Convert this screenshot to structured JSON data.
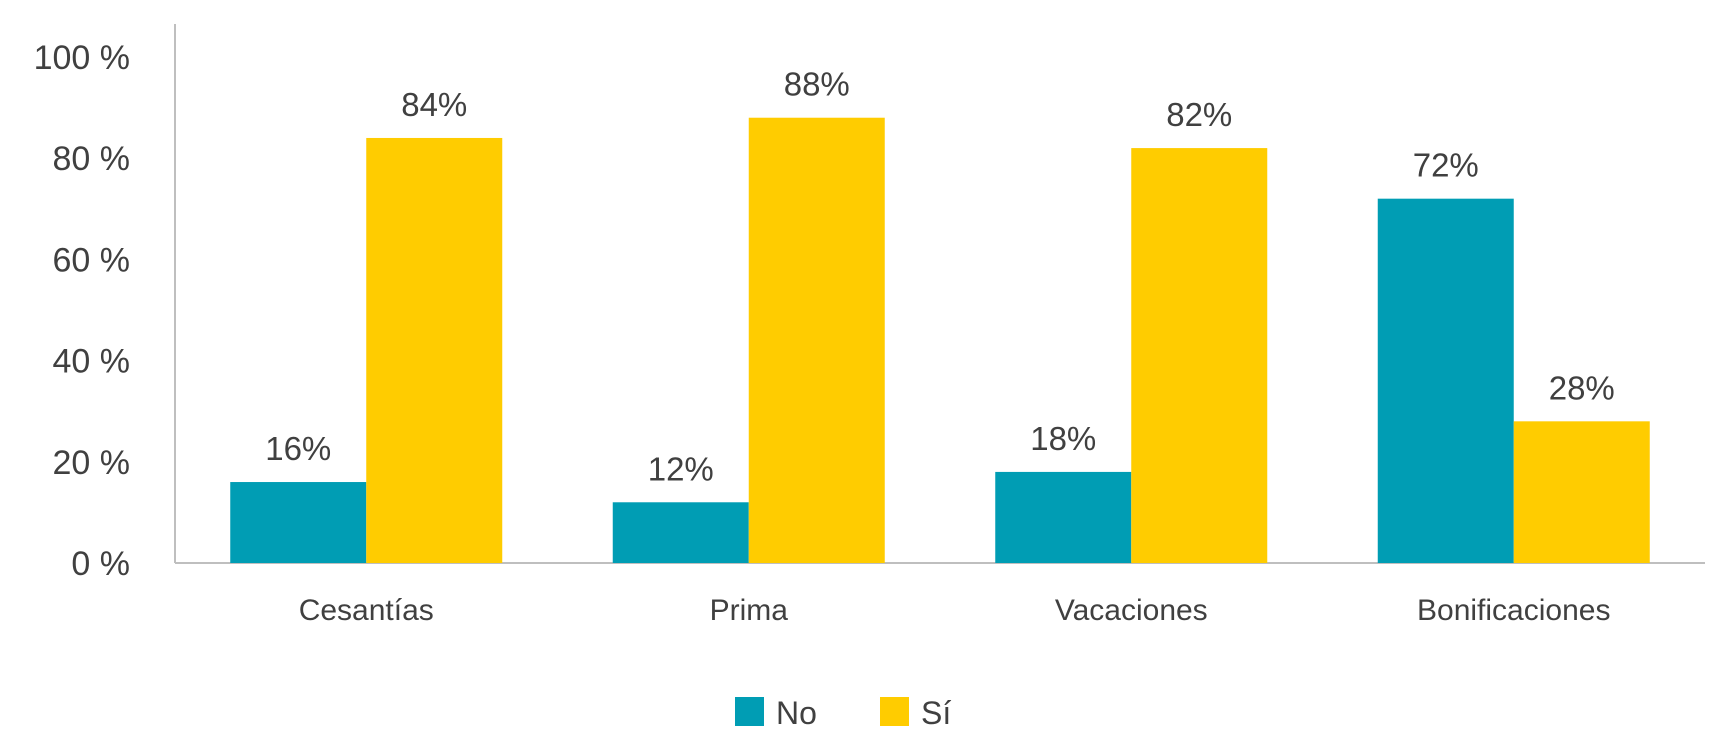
{
  "chart_data": {
    "type": "bar",
    "categories": [
      "Cesantías",
      "Prima",
      "Vacaciones",
      "Bonificaciones"
    ],
    "series": [
      {
        "name": "No",
        "values": [
          16,
          12,
          18,
          72
        ],
        "labels": [
          "16%",
          "12%",
          "18%",
          "72%"
        ],
        "color": "#009db4"
      },
      {
        "name": "Sí",
        "values": [
          84,
          88,
          82,
          28
        ],
        "labels": [
          "84%",
          "88%",
          "82%",
          "28%"
        ],
        "color": "#ffcc00"
      }
    ],
    "yticks": [
      0,
      20,
      40,
      60,
      80,
      100
    ],
    "ytick_labels": [
      "0 %",
      "20 %",
      "40 %",
      "60 %",
      "80 %",
      "100 %"
    ],
    "ylim": [
      0,
      100
    ],
    "title": "",
    "xlabel": "",
    "ylabel": "",
    "grid": false,
    "legend_position": "bottom"
  }
}
